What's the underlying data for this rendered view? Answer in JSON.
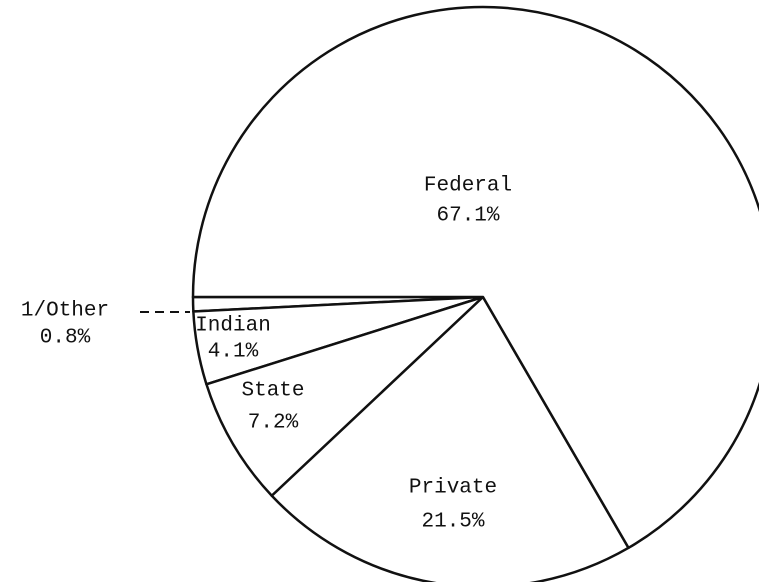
{
  "chart_data": {
    "type": "pie",
    "categories": [
      "1/Other",
      "Indian",
      "State",
      "Private",
      "Federal"
    ],
    "values": [
      0.8,
      4.1,
      7.2,
      21.5,
      67.1
    ],
    "value_labels": [
      "0.8%",
      "4.1%",
      "7.2%",
      "21.5%",
      "67.1%"
    ],
    "color": "#ffffff"
  }
}
